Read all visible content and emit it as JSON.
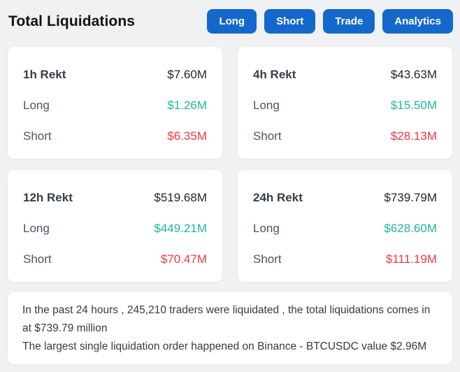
{
  "header": {
    "title": "Total Liquidations",
    "buttons": [
      {
        "label": "Long"
      },
      {
        "label": "Short"
      },
      {
        "label": "Trade"
      },
      {
        "label": "Analytics"
      }
    ]
  },
  "labels": {
    "long": "Long",
    "short": "Short"
  },
  "cards": [
    {
      "period": "1h Rekt",
      "total": "$7.60M",
      "long": "$1.26M",
      "short": "$6.35M"
    },
    {
      "period": "4h Rekt",
      "total": "$43.63M",
      "long": "$15.50M",
      "short": "$28.13M"
    },
    {
      "period": "12h Rekt",
      "total": "$519.68M",
      "long": "$449.21M",
      "short": "$70.47M"
    },
    {
      "period": "24h Rekt",
      "total": "$739.79M",
      "long": "$628.60M",
      "short": "$111.19M"
    }
  ],
  "summary": {
    "line1": "In the past 24 hours , 245,210 traders were liquidated , the total liquidations comes in at $739.79 million",
    "line2": "The largest single liquidation order happened on Binance - BTCUSDC value $2.96M"
  },
  "colors": {
    "accent_blue": "#1568cb",
    "long_green": "#1eb5a1",
    "short_red": "#ef3747"
  }
}
